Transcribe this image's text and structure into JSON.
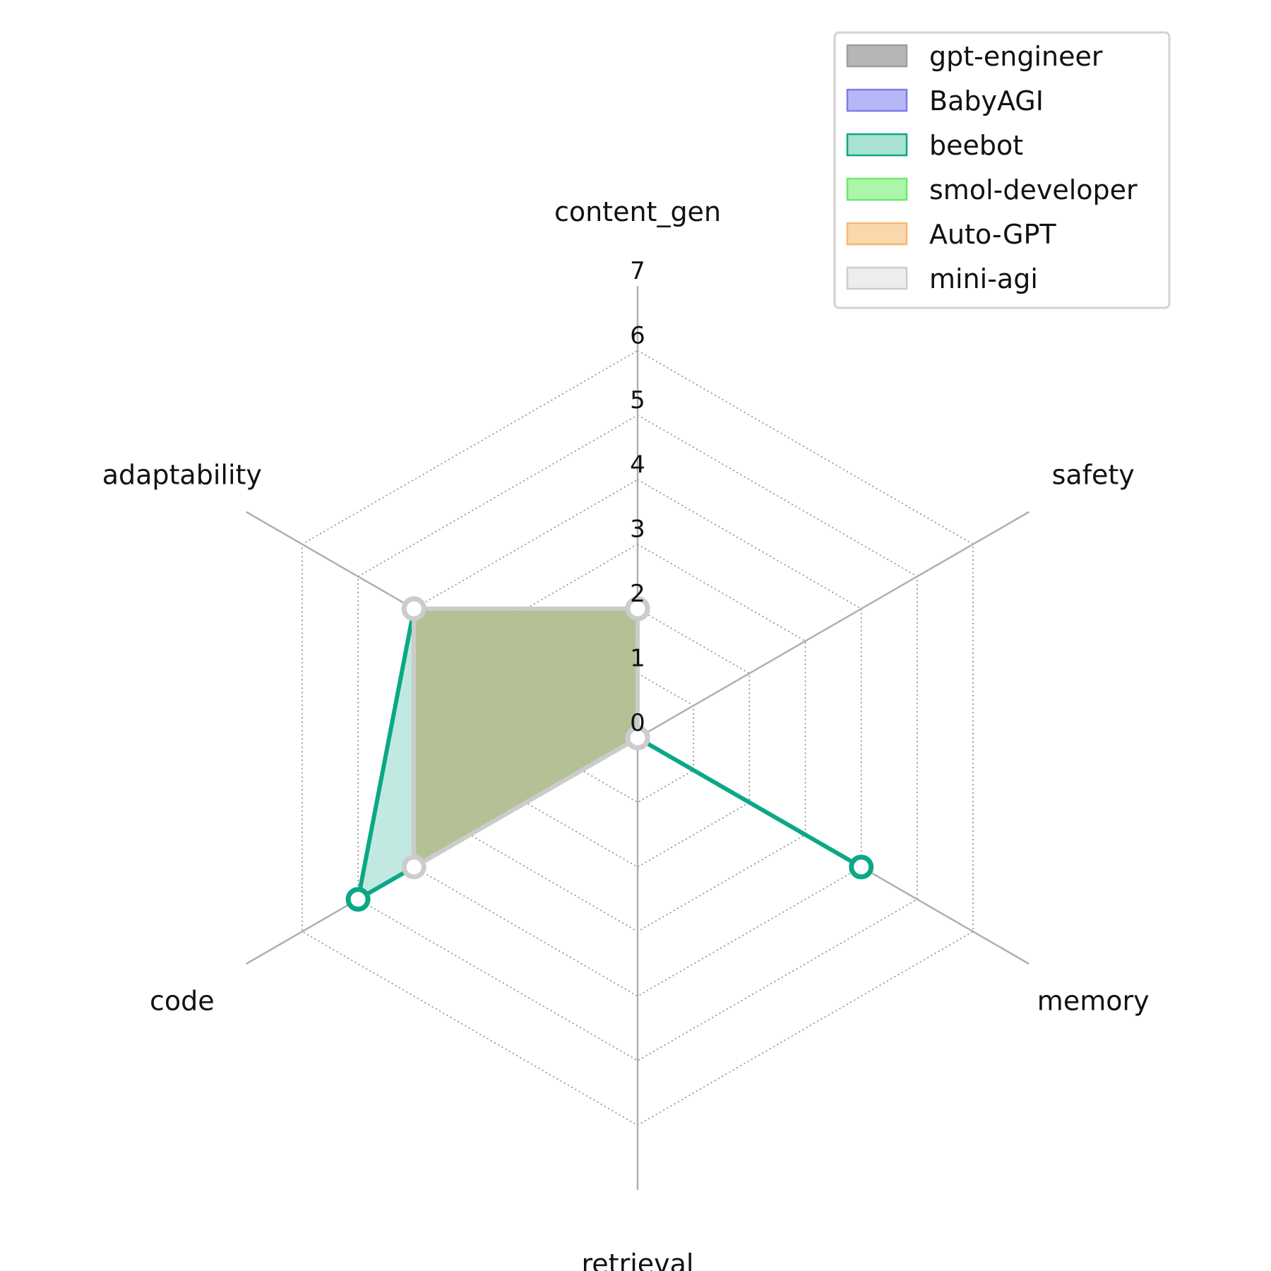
{
  "chart_data": {
    "type": "radar",
    "axes": [
      "content_gen",
      "safety",
      "memory",
      "retrieval",
      "code",
      "adaptability"
    ],
    "rlim": [
      0,
      7
    ],
    "r_ticks": [
      "0",
      "1",
      "2",
      "3",
      "4",
      "5",
      "6",
      "7"
    ],
    "grid": true,
    "legend_position": "top-right",
    "series": [
      {
        "name": "gpt-engineer",
        "values": [
          2,
          0,
          0,
          0,
          4,
          4
        ],
        "color": "#9e9e9e",
        "fill_opacity": 0.65,
        "show_markers": false
      },
      {
        "name": "BabyAGI",
        "values": [
          2,
          0,
          0,
          0,
          4,
          4
        ],
        "color": "#7b7bef",
        "fill_opacity": 0.45,
        "show_markers": false
      },
      {
        "name": "beebot",
        "values": [
          2,
          0,
          4,
          0,
          5,
          4
        ],
        "color": "#0aa886",
        "fill_opacity": 0.25,
        "show_markers": true
      },
      {
        "name": "smol-developer",
        "values": [
          2,
          0,
          0,
          0,
          4,
          4
        ],
        "color": "#66ee66",
        "fill_opacity": 0.45,
        "show_markers": false
      },
      {
        "name": "Auto-GPT",
        "values": [
          2,
          0,
          0,
          0,
          4,
          4
        ],
        "color": "#f5b86b",
        "fill_opacity": 0.45,
        "show_markers": false
      },
      {
        "name": "mini-agi",
        "values": [
          2,
          0,
          0,
          0,
          4,
          4
        ],
        "color": "#cccccc",
        "fill_opacity": 0.25,
        "show_markers": true
      }
    ]
  }
}
